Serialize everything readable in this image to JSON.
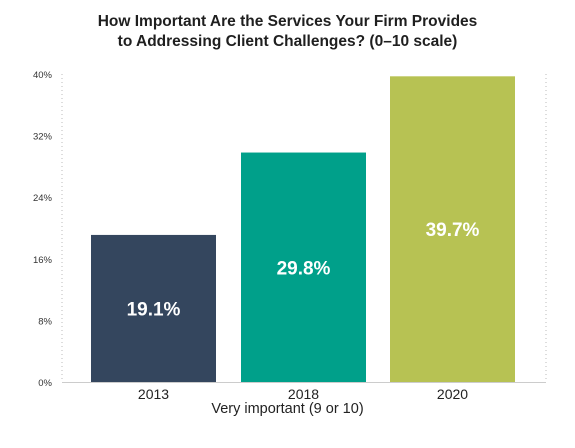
{
  "chart_data": {
    "type": "bar",
    "title_lines": [
      "How Important Are the Services Your Firm Provides",
      "to Addressing Client Challenges? (0–10 scale)"
    ],
    "xlabel": "Very important (9 or 10)",
    "ylabel": "",
    "categories": [
      "2013",
      "2018",
      "2020"
    ],
    "values": [
      19.1,
      29.8,
      39.7
    ],
    "value_labels": [
      "19.1%",
      "29.8%",
      "39.7%"
    ],
    "colors": [
      "#34465e",
      "#00a08a",
      "#b7c253"
    ],
    "ylim": [
      0,
      40
    ],
    "yticks": [
      0,
      8,
      16,
      24,
      32,
      40
    ],
    "ytick_labels": [
      "0%",
      "8%",
      "16%",
      "24%",
      "32%",
      "40%"
    ],
    "grid": false
  }
}
